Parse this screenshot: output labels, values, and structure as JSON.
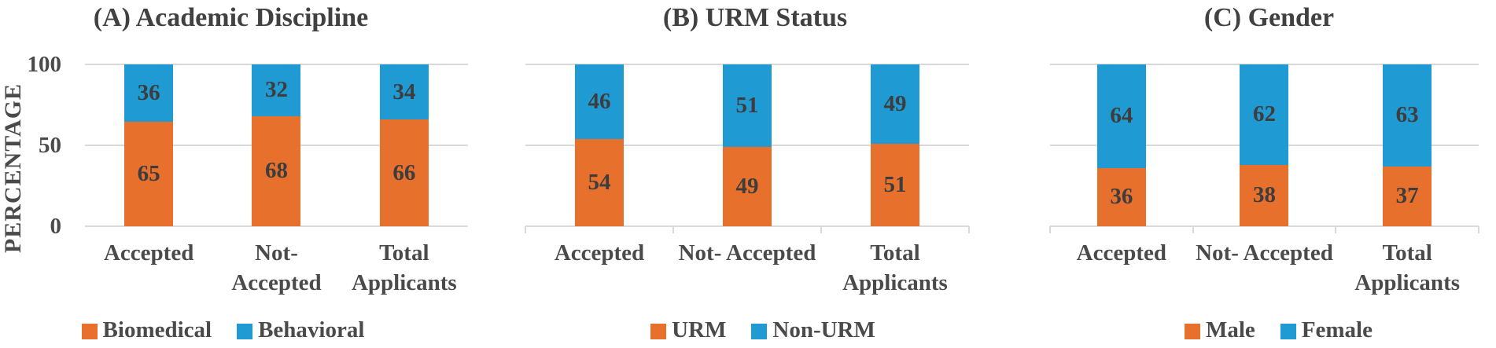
{
  "colors": {
    "orange": "#E7702D",
    "blue": "#1F9AD2",
    "text": "#454545",
    "grid": "#D9D9D9"
  },
  "chart_data": [
    {
      "type": "bar",
      "stacked": true,
      "title": "(A) Academic Discipline",
      "ylabel": "PERCENTAGE",
      "ylim": [
        0,
        100
      ],
      "yticks": [
        100,
        50,
        0
      ],
      "y_axis_visible": true,
      "x_tickmarks_visible": false,
      "grid": true,
      "legend_position": "bottom",
      "categories": [
        "Accepted",
        "Not-Accepted",
        "Total Applicants"
      ],
      "category_lines": [
        [
          "Accepted"
        ],
        [
          "Not-",
          "Accepted"
        ],
        [
          "Total",
          "Applicants"
        ]
      ],
      "series": [
        {
          "name": "Biomedical",
          "color": "#E7702D",
          "values": [
            65,
            68,
            66
          ]
        },
        {
          "name": "Behavioral",
          "color": "#1F9AD2",
          "values": [
            36,
            32,
            34
          ]
        }
      ]
    },
    {
      "type": "bar",
      "stacked": true,
      "title": "(B) URM Status",
      "ylabel": "",
      "ylim": [
        0,
        100
      ],
      "yticks": [
        100,
        50,
        0
      ],
      "y_axis_visible": false,
      "x_tickmarks_visible": true,
      "grid": true,
      "legend_position": "bottom",
      "categories": [
        "Accepted",
        "Not- Accepted",
        "Total Applicants"
      ],
      "category_lines": [
        [
          "Accepted"
        ],
        [
          "Not- Accepted"
        ],
        [
          "Total",
          "Applicants"
        ]
      ],
      "series": [
        {
          "name": "URM",
          "color": "#E7702D",
          "values": [
            54,
            49,
            51
          ]
        },
        {
          "name": "Non-URM",
          "color": "#1F9AD2",
          "values": [
            46,
            51,
            49
          ]
        }
      ]
    },
    {
      "type": "bar",
      "stacked": true,
      "title": "(C) Gender",
      "ylabel": "",
      "ylim": [
        0,
        100
      ],
      "yticks": [
        100,
        50,
        0
      ],
      "y_axis_visible": false,
      "x_tickmarks_visible": true,
      "grid": true,
      "legend_position": "bottom",
      "categories": [
        "Accepted",
        "Not- Accepted",
        "Total Applicants"
      ],
      "category_lines": [
        [
          "Accepted"
        ],
        [
          "Not- Accepted"
        ],
        [
          "Total",
          "Applicants"
        ]
      ],
      "series": [
        {
          "name": "Male",
          "color": "#E7702D",
          "values": [
            36,
            38,
            37
          ]
        },
        {
          "name": "Female",
          "color": "#1F9AD2",
          "values": [
            64,
            62,
            63
          ]
        }
      ]
    }
  ]
}
